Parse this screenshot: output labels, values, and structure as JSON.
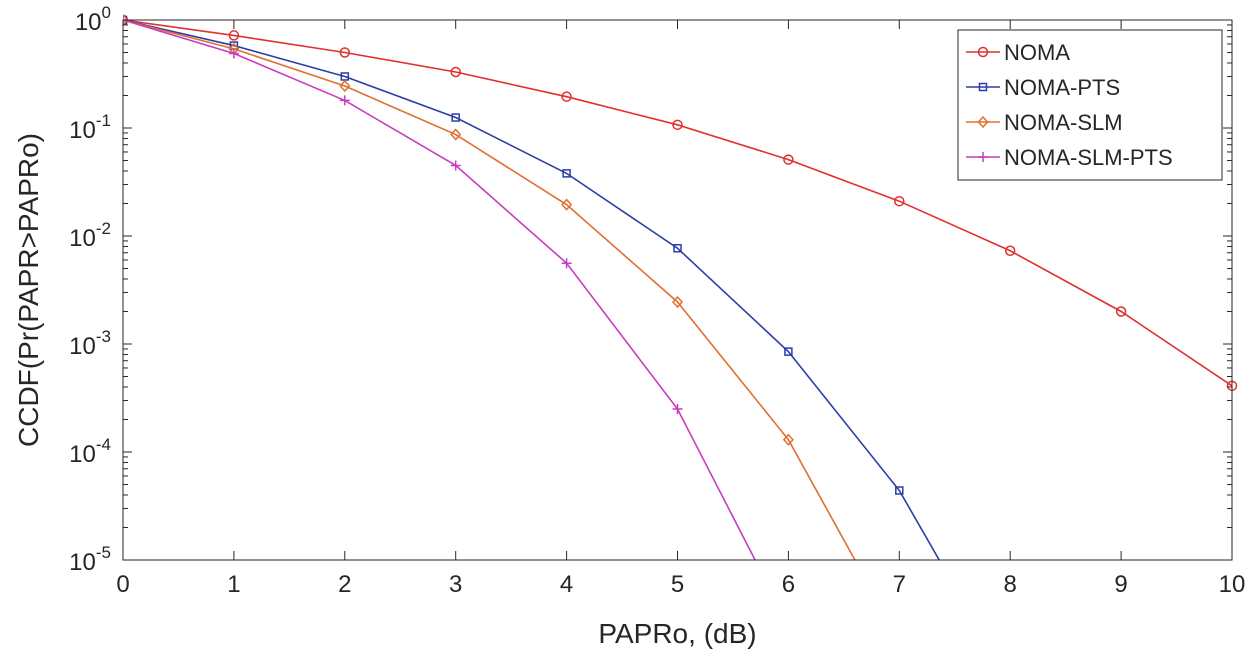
{
  "chart_data": {
    "type": "line",
    "title": "",
    "xlabel": "PAPRo, (dB)",
    "ylabel": "CCDF(Pr(PAPR>PAPRo)",
    "xlim": [
      0,
      10
    ],
    "ylim": [
      1e-05,
      1
    ],
    "yscale": "log",
    "grid": false,
    "legend_position": "top-right",
    "x_ticks": [
      0,
      1,
      2,
      3,
      4,
      5,
      6,
      7,
      8,
      9,
      10
    ],
    "y_ticks": [
      {
        "value": 1,
        "base": "10",
        "exp": "0"
      },
      {
        "value": 0.1,
        "base": "10",
        "exp": "-1"
      },
      {
        "value": 0.01,
        "base": "10",
        "exp": "-2"
      },
      {
        "value": 0.001,
        "base": "10",
        "exp": "-3"
      },
      {
        "value": 0.0001,
        "base": "10",
        "exp": "-4"
      },
      {
        "value": 1e-05,
        "base": "10",
        "exp": "-5"
      }
    ],
    "series": [
      {
        "name": "NOMA",
        "color": "#e0302f",
        "marker": "circle",
        "x": [
          0,
          1,
          2,
          3,
          4,
          5,
          6,
          7,
          8,
          9,
          10
        ],
        "y": [
          1,
          0.72,
          0.5,
          0.33,
          0.195,
          0.107,
          0.051,
          0.021,
          0.0073,
          0.002,
          0.00041
        ]
      },
      {
        "name": "NOMA-PTS",
        "color": "#2b3ea8",
        "marker": "square",
        "x": [
          0,
          1,
          2,
          3,
          4,
          5,
          6,
          7,
          7.36
        ],
        "y": [
          1,
          0.58,
          0.3,
          0.125,
          0.038,
          0.0077,
          0.00085,
          4.4e-05,
          1e-05
        ]
      },
      {
        "name": "NOMA-SLM",
        "color": "#e0702f",
        "marker": "diamond",
        "x": [
          0,
          1,
          2,
          3,
          4,
          5,
          6,
          6.6
        ],
        "y": [
          1,
          0.54,
          0.245,
          0.087,
          0.0195,
          0.00245,
          0.00013,
          1e-05
        ]
      },
      {
        "name": "NOMA-SLM-PTS",
        "color": "#c83cc0",
        "marker": "plus",
        "x": [
          0,
          1,
          2,
          3,
          4,
          5,
          5.7
        ],
        "y": [
          1,
          0.49,
          0.18,
          0.045,
          0.0056,
          0.00025,
          1e-05
        ]
      }
    ]
  }
}
